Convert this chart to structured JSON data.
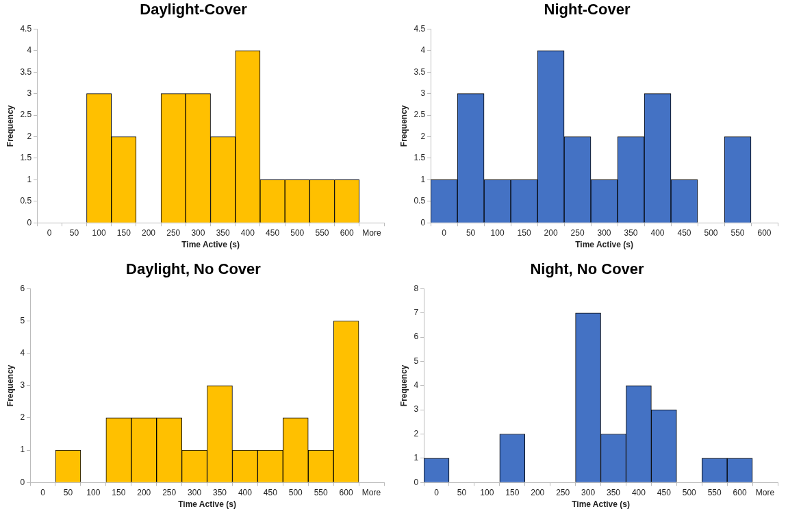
{
  "chart_data": [
    {
      "type": "bar",
      "title": "Daylight-Cover",
      "xlabel": "Time Active (s)",
      "ylabel": "Frequency",
      "categories": [
        "0",
        "50",
        "100",
        "150",
        "200",
        "250",
        "300",
        "350",
        "400",
        "450",
        "500",
        "550",
        "600",
        "More"
      ],
      "values": [
        0,
        0,
        3,
        2,
        0,
        3,
        3,
        2,
        4,
        1,
        1,
        1,
        1,
        0
      ],
      "color": "#ffc000",
      "ylim": [
        0,
        4.5
      ],
      "yticks": [
        0,
        0.5,
        1,
        1.5,
        2,
        2.5,
        3,
        3.5,
        4,
        4.5
      ],
      "grid": false,
      "legend": false
    },
    {
      "type": "bar",
      "title": "Night-Cover",
      "xlabel": "Time Active (s)",
      "ylabel": "Frequency",
      "categories": [
        "0",
        "50",
        "100",
        "150",
        "200",
        "250",
        "300",
        "350",
        "400",
        "450",
        "500",
        "550",
        "600"
      ],
      "values": [
        1,
        3,
        1,
        1,
        4,
        2,
        1,
        2,
        3,
        1,
        0,
        2,
        0
      ],
      "color": "#4472c4",
      "ylim": [
        0,
        4.5
      ],
      "yticks": [
        0,
        0.5,
        1,
        1.5,
        2,
        2.5,
        3,
        3.5,
        4,
        4.5
      ],
      "grid": false,
      "legend": false
    },
    {
      "type": "bar",
      "title": "Daylight, No Cover",
      "xlabel": "Time Active (s)",
      "ylabel": "Frequency",
      "categories": [
        "0",
        "50",
        "100",
        "150",
        "200",
        "250",
        "300",
        "350",
        "400",
        "450",
        "500",
        "550",
        "600",
        "More"
      ],
      "values": [
        0,
        1,
        0,
        2,
        2,
        2,
        1,
        3,
        1,
        1,
        2,
        1,
        5,
        0
      ],
      "color": "#ffc000",
      "ylim": [
        0,
        6
      ],
      "yticks": [
        0,
        1,
        2,
        3,
        4,
        5,
        6
      ],
      "grid": false,
      "legend": false
    },
    {
      "type": "bar",
      "title": "Night, No Cover",
      "xlabel": "Time Active (s)",
      "ylabel": "Frequency",
      "categories": [
        "0",
        "50",
        "100",
        "150",
        "200",
        "250",
        "300",
        "350",
        "400",
        "450",
        "500",
        "550",
        "600",
        "More"
      ],
      "values": [
        1,
        0,
        0,
        2,
        0,
        0,
        7,
        2,
        4,
        3,
        0,
        1,
        1,
        0
      ],
      "color": "#4472c4",
      "ylim": [
        0,
        8
      ],
      "yticks": [
        0,
        1,
        2,
        3,
        4,
        5,
        6,
        7,
        8
      ],
      "grid": false,
      "legend": false
    }
  ]
}
